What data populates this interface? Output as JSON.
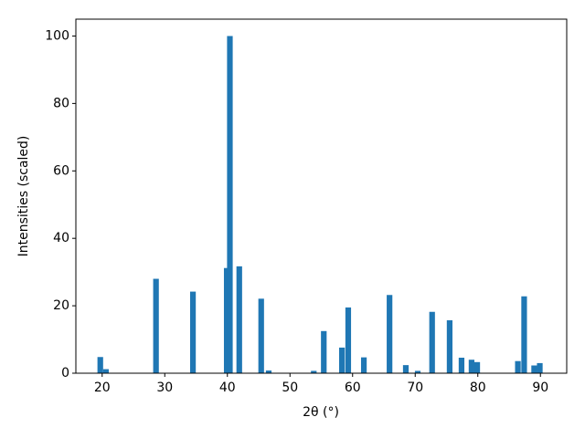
{
  "chart_data": {
    "type": "bar",
    "xlabel": "2θ (°)",
    "ylabel": "Intensities (scaled)",
    "x": [
      19.7,
      20.6,
      28.6,
      34.5,
      39.9,
      40.4,
      41.9,
      45.4,
      46.6,
      53.8,
      55.4,
      58.3,
      59.3,
      61.8,
      65.9,
      68.5,
      70.4,
      72.7,
      75.5,
      77.4,
      79.0,
      79.9,
      86.4,
      87.4,
      89.0,
      89.9
    ],
    "values": [
      4.8,
      1.2,
      28,
      24.2,
      31.2,
      100,
      31.7,
      22.1,
      0.8,
      0.7,
      12.5,
      7.6,
      19.5,
      4.7,
      23.2,
      2.4,
      0.7,
      18.2,
      15.7,
      4.6,
      4.0,
      3.3,
      3.6,
      22.8,
      2.3,
      3.0
    ],
    "color": "#1f77b4",
    "xlim": [
      15.8,
      94.2
    ],
    "xticks": [
      20,
      30,
      40,
      50,
      60,
      70,
      80,
      90
    ],
    "ylim": [
      0,
      105
    ],
    "yticks": [
      0,
      20,
      40,
      60,
      80,
      100
    ],
    "grid": false
  }
}
